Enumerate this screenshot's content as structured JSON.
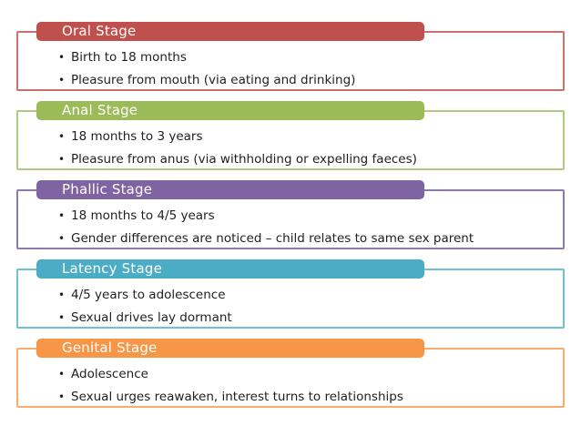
{
  "slide": {
    "background_color": "#ffffff",
    "text_color": "#1f1f1f",
    "bullet_char": "•",
    "stages": [
      {
        "title": "Oral Stage",
        "tab_color": "#c0504d",
        "border_color": "#c9706d",
        "bullets": [
          "Birth to 18 months",
          "Pleasure from mouth (via eating and drinking)"
        ]
      },
      {
        "title": "Anal Stage",
        "tab_color": "#9bbb59",
        "border_color": "#afc97e",
        "bullets": [
          "18 months to 3 years",
          "Pleasure from anus (via withholding or expelling faeces)"
        ]
      },
      {
        "title": "Phallic Stage",
        "tab_color": "#8064a2",
        "border_color": "#8e7bae",
        "bullets": [
          "18 months to 4/5 years",
          "Gender differences are noticed – child relates to same sex parent"
        ]
      },
      {
        "title": "Latency Stage",
        "tab_color": "#4bacc6",
        "border_color": "#71bfd6",
        "bullets": [
          "4/5 years to adolescence",
          "Sexual drives lay dormant"
        ]
      },
      {
        "title": "Genital Stage",
        "tab_color": "#f79646",
        "border_color": "#f8ac70",
        "bullets": [
          "Adolescence",
          "Sexual urges reawaken, interest turns to relationships"
        ]
      }
    ]
  }
}
